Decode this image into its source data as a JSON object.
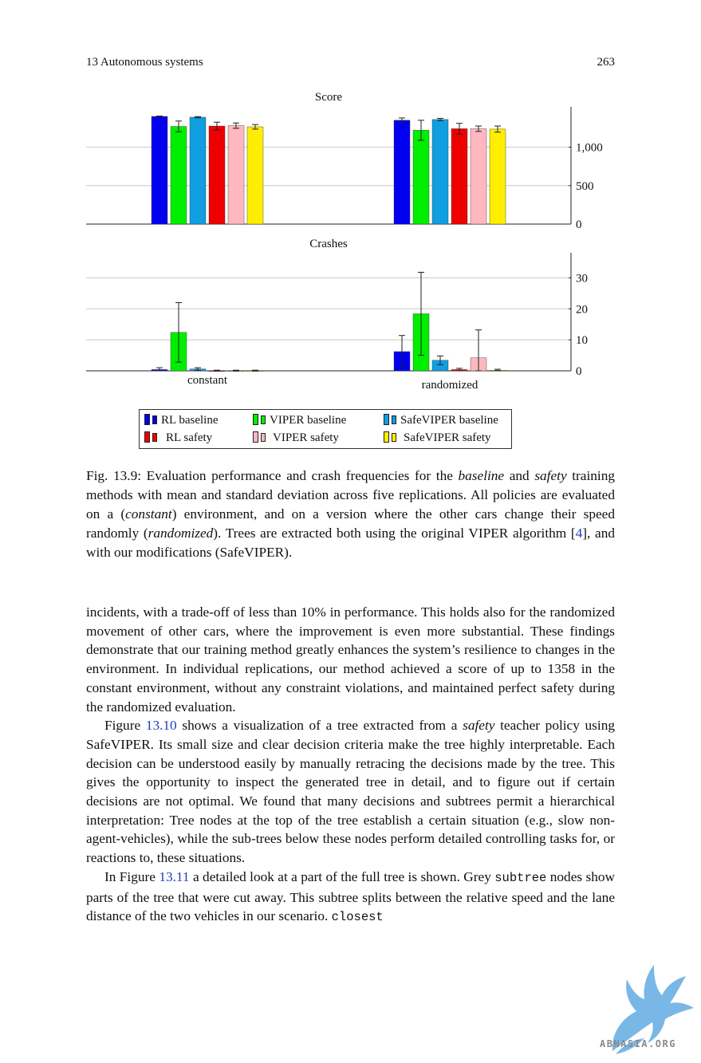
{
  "running_head": {
    "chapter": "13  Autonomous systems",
    "page_number": "263"
  },
  "chart_data": [
    {
      "type": "bar",
      "title": "Score",
      "categories": [
        "",
        ""
      ],
      "series": [
        {
          "name": "RL baseline",
          "color": "#0000ee",
          "values": [
            1400,
            1350
          ],
          "err": [
            5,
            30
          ]
        },
        {
          "name": "VIPER baseline",
          "color": "#00ee00",
          "values": [
            1270,
            1220
          ],
          "err": [
            70,
            130
          ]
        },
        {
          "name": "SafeVIPER baseline",
          "color": "#0f9ee0",
          "values": [
            1390,
            1360
          ],
          "err": [
            8,
            15
          ]
        },
        {
          "name": "RL safety",
          "color": "#ee0000",
          "values": [
            1275,
            1240
          ],
          "err": [
            50,
            70
          ]
        },
        {
          "name": "VIPER safety",
          "color": "#ffb8c0",
          "values": [
            1280,
            1240
          ],
          "err": [
            35,
            35
          ]
        },
        {
          "name": "SafeVIPER safety",
          "color": "#ffee00",
          "values": [
            1265,
            1235
          ],
          "err": [
            30,
            40
          ]
        }
      ],
      "ylim": [
        0,
        1400
      ],
      "yticks": [
        "0",
        "500",
        "1,000"
      ],
      "ytick_values": [
        0,
        500,
        1000
      ],
      "grid": true
    },
    {
      "type": "bar",
      "title": "Crashes",
      "categories": [
        "constant",
        "randomized"
      ],
      "series": [
        {
          "name": "RL baseline",
          "color": "#0000ee",
          "values": [
            0.4,
            6.2
          ],
          "err": [
            0.6,
            5.2
          ]
        },
        {
          "name": "VIPER baseline",
          "color": "#00ee00",
          "values": [
            12.4,
            18.4
          ],
          "err": [
            9.6,
            13.4
          ]
        },
        {
          "name": "SafeVIPER baseline",
          "color": "#0f9ee0",
          "values": [
            0.6,
            3.4
          ],
          "err": [
            0.4,
            1.4
          ]
        },
        {
          "name": "RL safety",
          "color": "#ee0000",
          "values": [
            0,
            0.4
          ],
          "err": [
            0.2,
            0.4
          ]
        },
        {
          "name": "VIPER safety",
          "color": "#ffb8c0",
          "values": [
            0,
            4.2
          ],
          "err": [
            0.2,
            9
          ]
        },
        {
          "name": "SafeVIPER safety",
          "color": "#ffee00",
          "values": [
            0,
            0.2
          ],
          "err": [
            0.2,
            0.3
          ]
        }
      ],
      "ylim": [
        0,
        35
      ],
      "yticks": [
        "0",
        "10",
        "20",
        "30"
      ],
      "ytick_values": [
        0,
        10,
        20,
        30
      ],
      "grid": true
    }
  ],
  "legend": {
    "entries": [
      {
        "label": "RL baseline",
        "color": "#0000ee"
      },
      {
        "label": "VIPER baseline",
        "color": "#00ee00"
      },
      {
        "label": "SafeVIPER baseline",
        "color": "#0f9ee0"
      },
      {
        "label": "RL safety",
        "color": "#ee0000"
      },
      {
        "label": "VIPER safety",
        "color": "#ffb8c0"
      },
      {
        "label": "SafeVIPER safety",
        "color": "#ffee00"
      }
    ]
  },
  "caption": {
    "p1": "Fig. 13.9: Evaluation performance and crash frequencies for the ",
    "em1": "baseline",
    "p2": " and ",
    "em2": "safety",
    "p3": " training methods with mean and standard deviation across five replications. All policies are evaluated on a (",
    "em3": "constant",
    "p4": ") environment, and on a version where the other cars change their speed randomly (",
    "em4": "randomized",
    "p5": "). Trees are extracted both using the original VIPER algorithm [",
    "ref": "4",
    "p6": "], and with our modifications (SafeVIPER)."
  },
  "body": {
    "para1": "incidents, with a trade-off of less than 10% in performance. This holds also for the randomized movement of other cars, where the improvement is even more substantial. These findings demonstrate that our training method greatly enhances the system’s resilience to changes in the environment. In individual replications, our method achieved a score of up to 1358 in the constant environment, without any constraint violations, and maintained perfect safety during the randomized evaluation.",
    "para2_a": "Figure ",
    "para2_ref": "13.10",
    "para2_b": " shows a visualization of a tree extracted from a ",
    "para2_em": "safety",
    "para2_c": " teacher policy using SafeVIPER. Its small size and clear decision criteria make the tree highly interpretable. Each decision can be understood easily by manually retracing the decisions made by the tree. This gives the opportunity to inspect the generated tree in detail, and to figure out if certain decisions are not optimal. We found that many decisions and subtrees permit a hierarchical interpretation: Tree nodes at the top of the tree establish a certain situation (e.g., slow non-agent-vehicles), while the sub-trees below these nodes perform detailed controlling tasks for, or reactions to, these situations.",
    "para3_a": "In Figure ",
    "para3_ref": "13.11",
    "para3_b": " a detailed look at a part of the full tree is shown. Grey ",
    "para3_code1": "subtree",
    "para3_c": " nodes show parts of the tree that were cut away. This subtree splits between the relative speed and the lane distance of the two vehicles in our scenario. ",
    "para3_code2": "closest"
  },
  "watermark": {
    "text": "ABNASIA.ORG",
    "color": "#79b8e6"
  }
}
